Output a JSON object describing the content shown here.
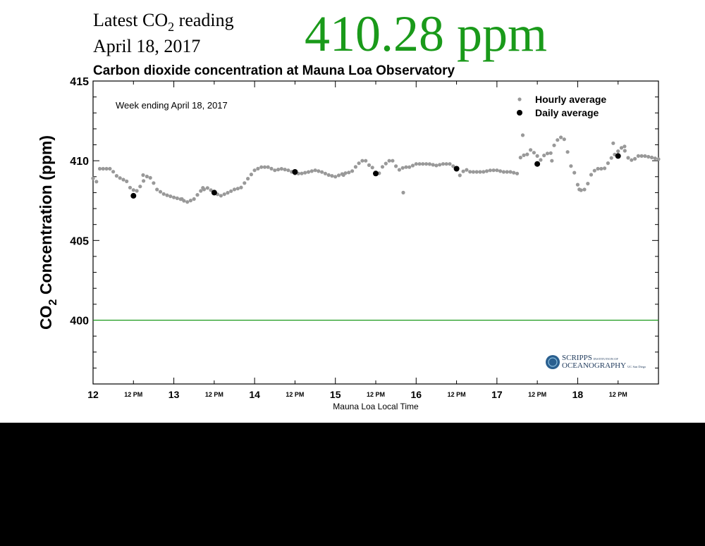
{
  "header": {
    "latest_prefix": "Latest CO",
    "latest_sub": "2",
    "latest_suffix": " reading",
    "date": "April 18, 2017",
    "value": "410.28 ppm"
  },
  "chart_data": {
    "type": "scatter",
    "title": "Carbon dioxide concentration at Mauna Loa Observatory",
    "annotation": "Week ending April 18, 2017",
    "ylabel_prefix": "CO",
    "ylabel_sub": "2",
    "ylabel_suffix": " Concentration (ppm)",
    "xlabel": "Mauna Loa Local Time",
    "ylim": [
      396,
      415
    ],
    "xlim": [
      12,
      19
    ],
    "yticks": [
      400,
      405,
      410,
      415
    ],
    "xticks_major": [
      {
        "x": 12,
        "label": "12"
      },
      {
        "x": 13,
        "label": "13"
      },
      {
        "x": 14,
        "label": "14"
      },
      {
        "x": 15,
        "label": "15"
      },
      {
        "x": 16,
        "label": "16"
      },
      {
        "x": 17,
        "label": "17"
      },
      {
        "x": 18,
        "label": "18"
      }
    ],
    "xticks_minor": [
      {
        "x": 12.5,
        "label": "12 PM"
      },
      {
        "x": 13.5,
        "label": "12 PM"
      },
      {
        "x": 14.5,
        "label": "12 PM"
      },
      {
        "x": 15.5,
        "label": "12 PM"
      },
      {
        "x": 16.5,
        "label": "12 PM"
      },
      {
        "x": 17.5,
        "label": "12 PM"
      },
      {
        "x": 18.5,
        "label": "12 PM"
      }
    ],
    "reference_line": {
      "y": 400,
      "color": "#1a9a1a"
    },
    "legend_position": "top-right",
    "series": [
      {
        "name": "Hourly average",
        "color": "#999999",
        "anchors": [
          [
            12.0,
            408.9
          ],
          [
            12.06,
            408.6
          ],
          [
            12.08,
            409.5
          ],
          [
            12.15,
            409.5
          ],
          [
            12.22,
            409.5
          ],
          [
            12.3,
            409.0
          ],
          [
            12.42,
            408.7
          ],
          [
            12.47,
            408.2
          ],
          [
            12.55,
            408.1
          ],
          [
            12.62,
            408.7
          ],
          [
            12.68,
            409.1
          ],
          [
            12.73,
            408.8
          ],
          [
            12.79,
            408.2
          ],
          [
            12.88,
            407.9
          ],
          [
            13.0,
            407.7
          ],
          [
            13.08,
            407.6
          ],
          [
            13.16,
            407.4
          ],
          [
            13.25,
            407.6
          ],
          [
            13.33,
            408.1
          ],
          [
            13.42,
            408.3
          ],
          [
            13.5,
            408.0
          ],
          [
            13.58,
            407.8
          ],
          [
            13.67,
            408.0
          ],
          [
            13.75,
            408.2
          ],
          [
            13.83,
            408.3
          ],
          [
            13.92,
            408.9
          ],
          [
            14.0,
            409.4
          ],
          [
            14.08,
            409.6
          ],
          [
            14.17,
            409.6
          ],
          [
            14.25,
            409.4
          ],
          [
            14.33,
            409.5
          ],
          [
            14.42,
            409.4
          ],
          [
            14.5,
            409.2
          ],
          [
            14.58,
            409.2
          ],
          [
            14.67,
            409.3
          ],
          [
            14.75,
            409.4
          ],
          [
            14.83,
            409.3
          ],
          [
            14.92,
            409.1
          ],
          [
            15.0,
            409.0
          ],
          [
            15.1,
            409.2
          ],
          [
            15.2,
            409.3
          ],
          [
            15.28,
            409.8
          ],
          [
            15.36,
            410.1
          ],
          [
            15.42,
            409.7
          ],
          [
            15.48,
            409.5
          ],
          [
            15.52,
            409.0
          ],
          [
            15.58,
            409.6
          ],
          [
            15.66,
            410.0
          ],
          [
            15.71,
            410.0
          ],
          [
            15.78,
            409.4
          ],
          [
            15.85,
            409.6
          ],
          [
            15.92,
            409.6
          ],
          [
            16.0,
            409.8
          ],
          [
            16.08,
            409.8
          ],
          [
            16.16,
            409.8
          ],
          [
            16.25,
            409.7
          ],
          [
            16.33,
            409.8
          ],
          [
            16.42,
            409.8
          ],
          [
            16.5,
            409.5
          ],
          [
            16.55,
            409.0
          ],
          [
            16.6,
            409.5
          ],
          [
            16.67,
            409.3
          ],
          [
            16.75,
            409.3
          ],
          [
            16.83,
            409.3
          ],
          [
            16.92,
            409.4
          ],
          [
            17.0,
            409.4
          ],
          [
            17.08,
            409.3
          ],
          [
            17.17,
            409.3
          ],
          [
            17.25,
            409.2
          ],
          [
            17.3,
            410.4
          ],
          [
            17.36,
            410.3
          ],
          [
            17.42,
            410.7
          ],
          [
            17.5,
            410.3
          ],
          [
            17.55,
            410.0
          ],
          [
            17.6,
            410.5
          ],
          [
            17.66,
            410.4
          ],
          [
            17.72,
            411.1
          ],
          [
            17.78,
            411.5
          ],
          [
            17.85,
            411.3
          ],
          [
            17.9,
            409.8
          ],
          [
            17.95,
            409.4
          ],
          [
            18.0,
            408.5
          ],
          [
            18.06,
            408.0
          ],
          [
            18.12,
            408.5
          ],
          [
            18.18,
            409.3
          ],
          [
            18.25,
            409.5
          ],
          [
            18.33,
            409.5
          ],
          [
            18.42,
            410.2
          ],
          [
            18.5,
            410.6
          ],
          [
            18.56,
            410.9
          ],
          [
            18.62,
            410.2
          ],
          [
            18.68,
            410.0
          ],
          [
            18.75,
            410.3
          ],
          [
            18.83,
            410.3
          ],
          [
            18.92,
            410.2
          ],
          [
            19.0,
            410.1
          ]
        ],
        "outliers": [
          [
            12.62,
            409.1
          ],
          [
            13.1,
            407.6
          ],
          [
            13.36,
            408.3
          ],
          [
            15.1,
            409.1
          ],
          [
            15.84,
            408.0
          ],
          [
            17.32,
            411.6
          ],
          [
            17.68,
            410.0
          ],
          [
            18.02,
            408.2
          ],
          [
            18.58,
            410.9
          ],
          [
            18.44,
            411.1
          ]
        ]
      },
      {
        "name": "Daily average",
        "color": "#000000",
        "points": [
          [
            12.5,
            407.8
          ],
          [
            13.5,
            408.0
          ],
          [
            14.5,
            409.3
          ],
          [
            15.5,
            409.2
          ],
          [
            16.5,
            409.5
          ],
          [
            17.5,
            409.8
          ],
          [
            18.5,
            410.3
          ]
        ]
      }
    ]
  },
  "logo": {
    "line1_big": "SCRIPPS",
    "line1_small": "INSTITUTION OF",
    "line2_big": "OCEANOGRAPHY",
    "line2_small": "UC San Diego"
  }
}
